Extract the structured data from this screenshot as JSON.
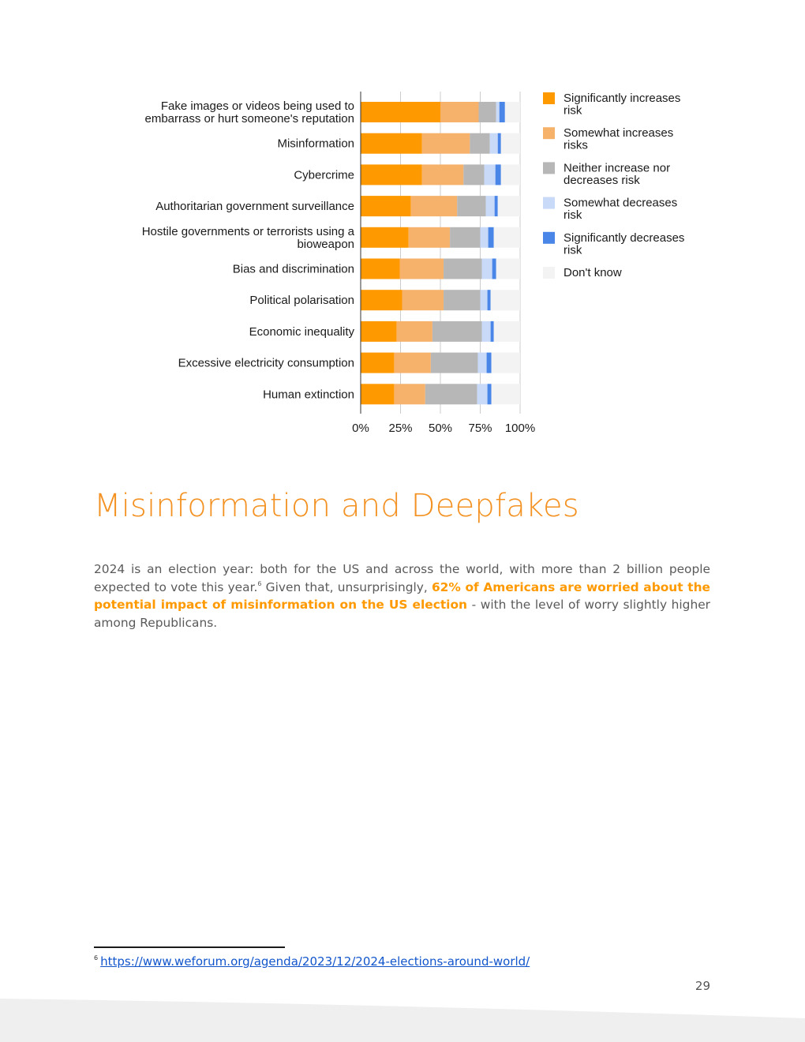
{
  "chart_data": {
    "type": "bar",
    "orientation": "horizontal",
    "stacked": true,
    "categories": [
      [
        "Fake images or videos being used to",
        "embarrass or hurt someone's reputation"
      ],
      [
        "Misinformation"
      ],
      [
        "Cybercrime"
      ],
      [
        "Authoritarian government surveillance"
      ],
      [
        "Hostile governments or terrorists using a",
        "bioweapon"
      ],
      [
        "Bias and discrimination"
      ],
      [
        "Political polarisation"
      ],
      [
        "Economic inequality"
      ],
      [
        "Excessive electricity consumption"
      ],
      [
        "Human extinction"
      ]
    ],
    "series": [
      {
        "name": "Significantly increases risk",
        "legend_lines": [
          "Significantly increases",
          "risk"
        ],
        "color": "#ff9900",
        "values": [
          50,
          38.5,
          38.5,
          31.5,
          30,
          24.5,
          26,
          22.5,
          21,
          21
        ]
      },
      {
        "name": "Somewhat increases risks",
        "legend_lines": [
          "Somewhat increases",
          "risks"
        ],
        "color": "#f6b26b",
        "values": [
          24,
          30,
          26,
          29,
          26,
          27.5,
          26,
          22.5,
          23,
          19.5
        ]
      },
      {
        "name": "Neither increase nor decreases risk",
        "legend_lines": [
          "Neither increase nor",
          "decreases risk"
        ],
        "color": "#b7b7b7",
        "values": [
          11,
          12.5,
          13,
          18,
          19,
          24,
          23,
          31,
          29.5,
          32.5
        ]
      },
      {
        "name": "Somewhat decreases risk",
        "legend_lines": [
          "Somewhat decreases",
          "risk"
        ],
        "color": "#c9daf8",
        "values": [
          2,
          5,
          7,
          5.5,
          5,
          6.5,
          4.5,
          5.5,
          5.5,
          6.5
        ]
      },
      {
        "name": "Significantly decreases risk",
        "legend_lines": [
          "Significantly decreases",
          "risk"
        ],
        "color": "#4a86e8",
        "values": [
          3.5,
          2,
          3.5,
          2,
          3.5,
          2.5,
          2,
          2,
          3,
          2.5
        ]
      },
      {
        "name": "Don't know",
        "legend_lines": [
          "Don't know"
        ],
        "color": "#f3f3f3",
        "values": [
          9.5,
          12,
          12,
          14,
          16.5,
          15,
          18.5,
          16.5,
          18,
          18
        ]
      }
    ],
    "x_ticks": [
      "0%",
      "25%",
      "50%",
      "75%",
      "100%"
    ],
    "xlim": [
      0,
      100
    ],
    "grid": true,
    "legend_position": "right"
  },
  "section": {
    "title": "Misinformation and Deepfakes"
  },
  "body": {
    "text_before": "2024 is an election year: both for the US and across the world, with more than 2 billion people expected to vote this year.",
    "footnote_ref": "6",
    "text_middle": " Given that, unsurprisingly, ",
    "highlight": "62% of Americans are worried about the potential impact of misinformation on the US election",
    "text_after": " - with the level of worry slightly higher among Republicans."
  },
  "footnote": {
    "number": "6",
    "link_text": "https://www.weforum.org/agenda/2023/12/2024-elections-around-world/"
  },
  "page_number": "29"
}
